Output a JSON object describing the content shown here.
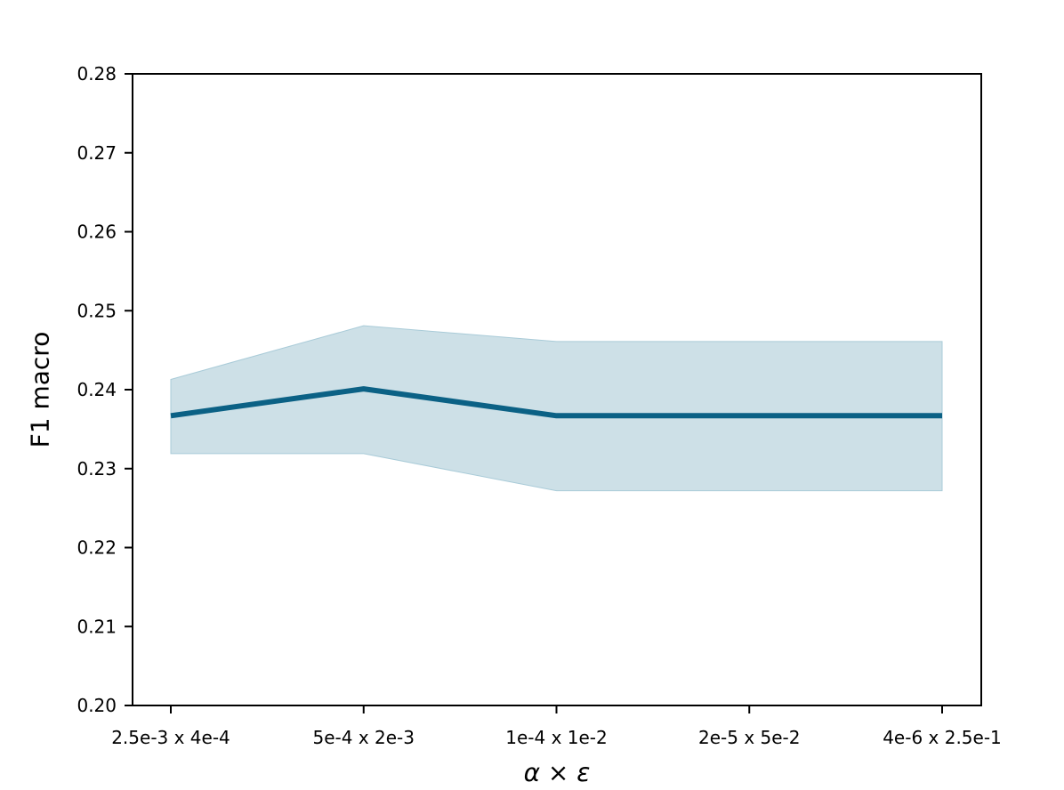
{
  "chart_data": {
    "type": "line",
    "title": "",
    "xlabel": "α × ε",
    "ylabel": "F1 macro",
    "categories": [
      "2.5e-3 x 4e-4",
      "5e-4 x 2e-3",
      "1e-4 x 1e-2",
      "2e-5 x 5e-2",
      "4e-6 x 2.5e-1"
    ],
    "series": [
      {
        "values": [
          0.2367,
          0.2401,
          0.2367,
          0.2367,
          0.2367
        ],
        "lower": [
          0.2319,
          0.2319,
          0.2272,
          0.2272,
          0.2272
        ],
        "upper": [
          0.2413,
          0.2481,
          0.2461,
          0.2461,
          0.2461
        ]
      }
    ],
    "ylim": [
      0.2,
      0.28
    ],
    "yticks": [
      "0.20",
      "0.21",
      "0.22",
      "0.23",
      "0.24",
      "0.25",
      "0.26",
      "0.27",
      "0.28"
    ],
    "grid": false,
    "colors": {
      "line": "#0b6185",
      "band": "#cde0e7",
      "band_edge": "#a9cbd8"
    }
  }
}
